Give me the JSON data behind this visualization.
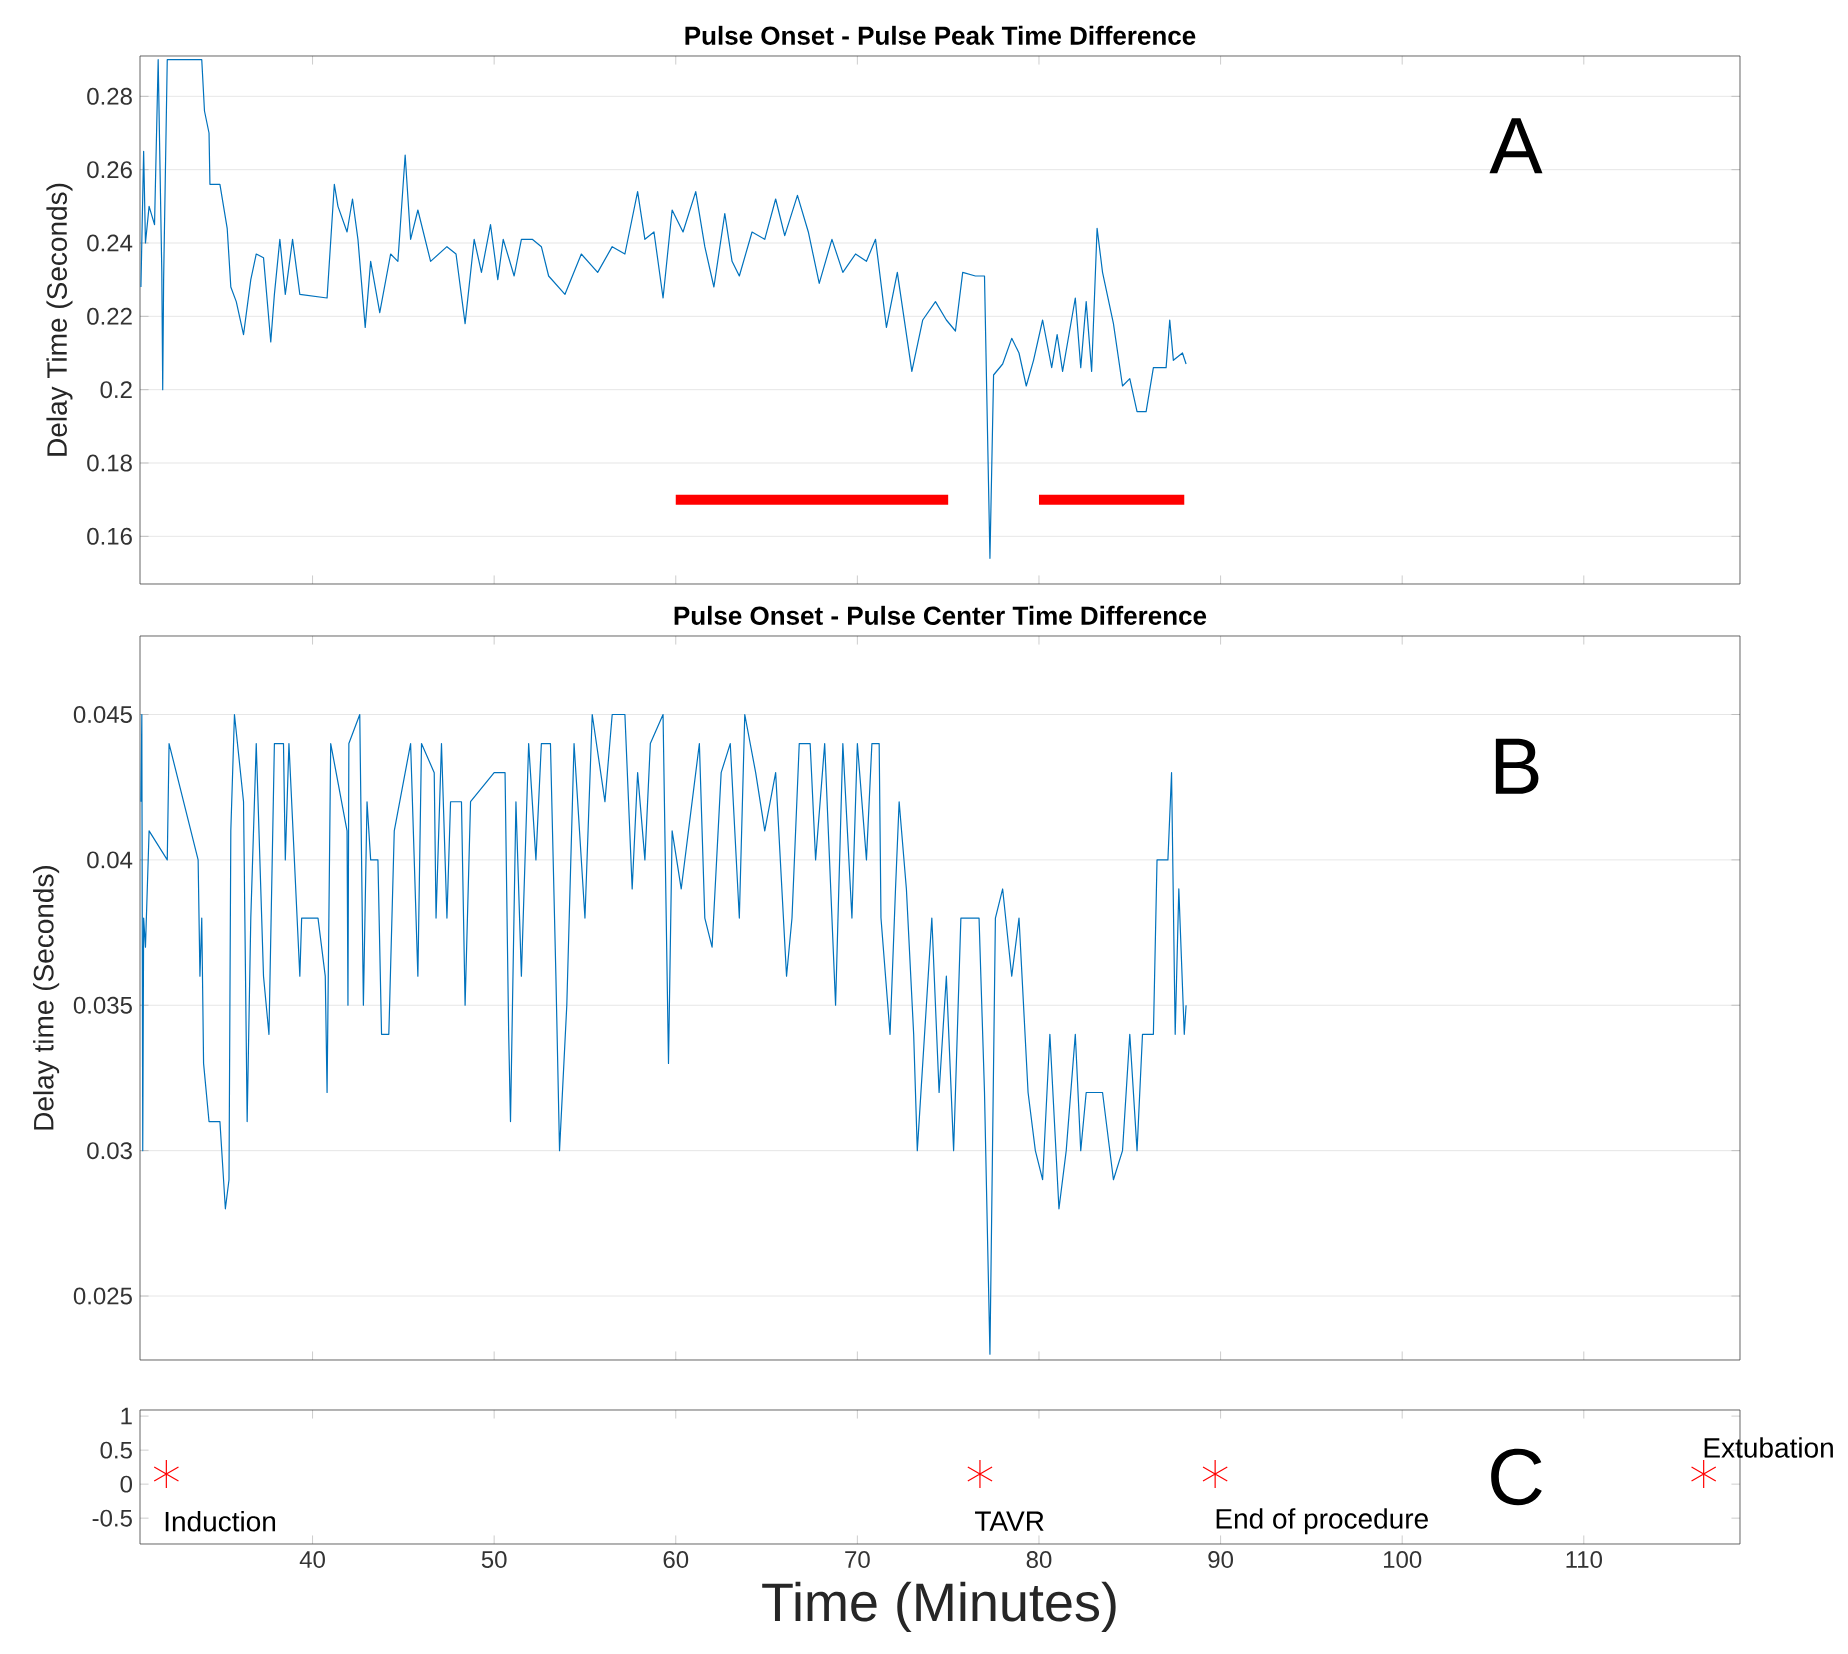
{
  "chart_data": [
    {
      "type": "line",
      "title": "Pulse Onset - Pulse Peak Time Difference",
      "ylabel": "Delay Time (Seconds)",
      "xlim": [
        30.5,
        118.6
      ],
      "xticks": [
        40,
        50,
        60,
        70,
        80,
        90,
        100,
        110
      ],
      "ylim": [
        0.147,
        0.291
      ],
      "yticks": [
        0.16,
        0.18,
        0.2,
        0.22,
        0.24,
        0.26,
        0.28
      ],
      "grid": "y",
      "tick_labels": "y",
      "annotations": [
        "A"
      ],
      "series": [
        {
          "color": "#0072bd",
          "x": [
            30.55,
            30.7,
            30.8,
            31.0,
            31.3,
            31.5,
            31.7,
            31.75,
            31.8,
            32.0,
            33.9,
            34.05,
            34.3,
            34.35,
            34.9,
            35.3,
            35.5,
            35.8,
            36.2,
            36.6,
            36.9,
            37.3,
            37.7,
            37.9,
            38.2,
            38.5,
            38.9,
            39.3,
            40.8,
            41.2,
            41.4,
            41.9,
            42.2,
            42.5,
            42.9,
            43.2,
            43.7,
            44.3,
            44.7,
            45.1,
            45.4,
            45.8,
            46.5,
            47.4,
            47.9,
            48.4,
            48.9,
            49.3,
            49.8,
            50.2,
            50.5,
            51.1,
            51.5,
            52.1,
            52.6,
            53.0,
            53.9,
            54.8,
            55.7,
            56.5,
            57.2,
            57.9,
            58.3,
            58.8,
            59.3,
            59.8,
            60.4,
            61.1,
            61.6,
            62.1,
            62.7,
            63.1,
            63.5,
            64.2,
            64.9,
            65.5,
            66.0,
            66.7,
            67.3,
            67.9,
            68.6,
            69.2,
            69.9,
            70.5,
            71.0,
            71.6,
            72.2,
            73.0,
            73.6,
            74.3,
            74.9,
            75.4,
            75.8,
            76.5,
            77.0,
            77.3,
            77.5,
            78.0,
            78.5,
            78.9,
            79.3,
            79.7,
            80.2,
            80.7,
            81.0,
            81.3,
            82.0,
            82.3,
            82.6,
            82.9,
            83.2,
            83.5,
            84.1,
            84.6,
            85.0,
            85.4,
            85.9,
            86.3,
            87.0,
            87.2,
            87.4,
            87.9,
            88.1
          ],
          "values": [
            0.228,
            0.265,
            0.24,
            0.25,
            0.245,
            0.29,
            0.232,
            0.2,
            0.23,
            0.29,
            0.29,
            0.276,
            0.27,
            0.256,
            0.256,
            0.244,
            0.228,
            0.224,
            0.215,
            0.23,
            0.237,
            0.236,
            0.213,
            0.226,
            0.241,
            0.226,
            0.241,
            0.226,
            0.225,
            0.256,
            0.25,
            0.243,
            0.252,
            0.241,
            0.217,
            0.235,
            0.221,
            0.237,
            0.235,
            0.264,
            0.241,
            0.249,
            0.235,
            0.239,
            0.237,
            0.218,
            0.241,
            0.232,
            0.245,
            0.23,
            0.241,
            0.231,
            0.241,
            0.241,
            0.239,
            0.231,
            0.226,
            0.237,
            0.232,
            0.239,
            0.237,
            0.254,
            0.241,
            0.243,
            0.225,
            0.249,
            0.243,
            0.254,
            0.239,
            0.228,
            0.248,
            0.235,
            0.231,
            0.243,
            0.241,
            0.252,
            0.242,
            0.253,
            0.243,
            0.229,
            0.241,
            0.232,
            0.237,
            0.235,
            0.241,
            0.217,
            0.232,
            0.205,
            0.219,
            0.224,
            0.219,
            0.216,
            0.232,
            0.231,
            0.231,
            0.154,
            0.204,
            0.207,
            0.214,
            0.21,
            0.201,
            0.208,
            0.219,
            0.206,
            0.215,
            0.205,
            0.225,
            0.206,
            0.224,
            0.205,
            0.244,
            0.232,
            0.218,
            0.201,
            0.203,
            0.194,
            0.194,
            0.206,
            0.206,
            0.219,
            0.208,
            0.21,
            0.207
          ]
        },
        {
          "color": "#ff0000",
          "x": [
            60,
            75
          ],
          "values": [
            0.17,
            0.17
          ]
        },
        {
          "color": "#ff0000",
          "x": [
            80,
            88
          ],
          "values": [
            0.17,
            0.17
          ]
        }
      ]
    },
    {
      "type": "line",
      "title": "Pulse Onset - Pulse Center Time Difference",
      "ylabel": "Delay time (Seconds)",
      "xlim": [
        30.5,
        118.6
      ],
      "xticks": [
        40,
        50,
        60,
        70,
        80,
        90,
        100,
        110
      ],
      "ylim": [
        0.0228,
        0.0477
      ],
      "yticks": [
        0.025,
        0.03,
        0.035,
        0.04,
        0.045
      ],
      "grid": "y",
      "tick_labels": "y",
      "annotations": [
        "B"
      ],
      "series": [
        {
          "color": "#0072bd",
          "x": [
            30.55,
            30.6,
            30.65,
            30.7,
            30.8,
            30.9,
            31.0,
            32.0,
            32.1,
            33.7,
            33.8,
            33.9,
            34.0,
            34.3,
            34.9,
            35.2,
            35.4,
            35.5,
            35.7,
            36.2,
            36.4,
            36.6,
            36.9,
            37.3,
            37.6,
            37.9,
            38.4,
            38.5,
            38.7,
            39.3,
            39.4,
            40.3,
            40.7,
            40.8,
            41.0,
            41.9,
            41.95,
            42.0,
            42.6,
            42.8,
            43.0,
            43.2,
            43.6,
            43.8,
            44.2,
            44.5,
            45.4,
            45.6,
            45.8,
            46.0,
            46.7,
            46.8,
            47.1,
            47.4,
            47.6,
            48.2,
            48.4,
            48.7,
            50.0,
            50.6,
            50.8,
            50.9,
            51.2,
            51.5,
            51.9,
            52.3,
            52.6,
            53.1,
            53.4,
            53.6,
            54.0,
            54.4,
            55.0,
            55.4,
            56.1,
            56.5,
            57.2,
            57.6,
            57.9,
            58.3,
            58.6,
            59.3,
            59.6,
            59.8,
            60.3,
            61.3,
            61.6,
            62.0,
            62.5,
            63.0,
            63.5,
            63.8,
            64.4,
            64.9,
            65.5,
            66.1,
            66.4,
            66.8,
            67.4,
            67.7,
            68.2,
            68.8,
            69.2,
            69.7,
            70.0,
            70.5,
            70.8,
            71.2,
            71.3,
            71.8,
            72.1,
            72.3,
            72.7,
            73.1,
            73.3,
            73.7,
            74.1,
            74.5,
            74.9,
            75.3,
            75.7,
            76.7,
            77.0,
            77.3,
            77.6,
            78.0,
            78.5,
            78.9,
            79.4,
            79.8,
            80.2,
            80.6,
            81.1,
            81.5,
            82.0,
            82.3,
            82.6,
            83.5,
            84.1,
            84.6,
            85.0,
            85.4,
            85.7,
            86.3,
            86.5,
            87.1,
            87.3,
            87.5,
            87.7,
            88.0,
            88.1
          ],
          "values": [
            0.042,
            0.045,
            0.03,
            0.038,
            0.037,
            0.039,
            0.041,
            0.04,
            0.044,
            0.04,
            0.036,
            0.038,
            0.033,
            0.031,
            0.031,
            0.028,
            0.029,
            0.041,
            0.045,
            0.042,
            0.031,
            0.038,
            0.044,
            0.036,
            0.034,
            0.044,
            0.044,
            0.04,
            0.044,
            0.036,
            0.038,
            0.038,
            0.036,
            0.032,
            0.044,
            0.041,
            0.035,
            0.044,
            0.045,
            0.035,
            0.042,
            0.04,
            0.04,
            0.034,
            0.034,
            0.041,
            0.044,
            0.04,
            0.036,
            0.044,
            0.043,
            0.038,
            0.044,
            0.038,
            0.042,
            0.042,
            0.035,
            0.042,
            0.043,
            0.043,
            0.034,
            0.031,
            0.042,
            0.036,
            0.044,
            0.04,
            0.044,
            0.044,
            0.036,
            0.03,
            0.035,
            0.044,
            0.038,
            0.045,
            0.042,
            0.045,
            0.045,
            0.039,
            0.043,
            0.04,
            0.044,
            0.045,
            0.033,
            0.041,
            0.039,
            0.044,
            0.038,
            0.037,
            0.043,
            0.044,
            0.038,
            0.045,
            0.043,
            0.041,
            0.043,
            0.036,
            0.038,
            0.044,
            0.044,
            0.04,
            0.044,
            0.035,
            0.044,
            0.038,
            0.044,
            0.04,
            0.044,
            0.044,
            0.038,
            0.034,
            0.039,
            0.042,
            0.039,
            0.034,
            0.03,
            0.034,
            0.038,
            0.032,
            0.036,
            0.03,
            0.038,
            0.038,
            0.032,
            0.023,
            0.038,
            0.039,
            0.036,
            0.038,
            0.032,
            0.03,
            0.029,
            0.034,
            0.028,
            0.03,
            0.034,
            0.03,
            0.032,
            0.032,
            0.029,
            0.03,
            0.034,
            0.03,
            0.034,
            0.034,
            0.04,
            0.04,
            0.043,
            0.034,
            0.039,
            0.034,
            0.035
          ]
        }
      ]
    },
    {
      "type": "scatter",
      "xlabel": "Time (Minutes)",
      "xlim": [
        30.5,
        118.6
      ],
      "xticks": [
        40,
        50,
        60,
        70,
        80,
        90,
        100,
        110
      ],
      "ylim": [
        -0.88,
        1.09
      ],
      "yticks": [
        -0.5,
        0,
        0.5,
        1
      ],
      "marker": "cross",
      "annotations": [
        "C",
        "Induction",
        "TAVR",
        "End of procedure",
        "Extubation"
      ],
      "series": [
        {
          "color": "#ff0000",
          "x": [
            31.95,
            76.75,
            89.7,
            116.6
          ],
          "values": [
            0.15,
            0.15,
            0.15,
            0.15
          ]
        }
      ]
    }
  ]
}
